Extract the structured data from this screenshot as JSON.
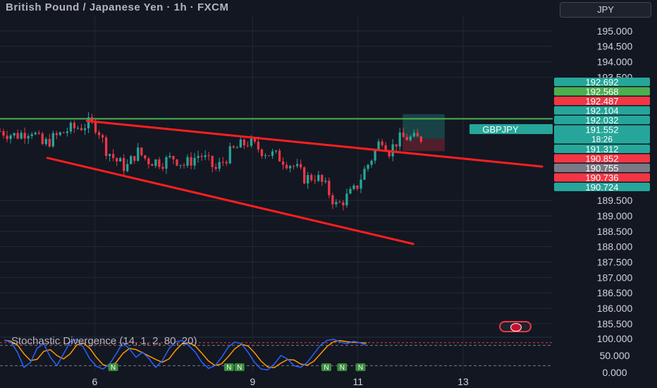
{
  "header": {
    "title": "British Pound / Japanese Yen · 1h · FXCM",
    "currency_button": "JPY"
  },
  "indicator": {
    "label": "Stochastic Divergence (14, 1, 2, 80, 20)"
  },
  "colors": {
    "background": "#131722",
    "bull": "#26a69a",
    "bear": "#f23645",
    "trendline": "#ff1f1f",
    "resistance": "#4caf50",
    "stoch_k": "#2962ff",
    "stoch_d": "#ff9800",
    "grid": "#242833"
  },
  "chart_data": {
    "type": "candlestick",
    "symbol_tag": "GBPJPY",
    "y_ticks": [
      "195.000",
      "194.500",
      "194.000",
      "193.500",
      "189.500",
      "189.000",
      "188.500",
      "188.000",
      "187.500",
      "187.000",
      "186.500",
      "186.000",
      "185.500"
    ],
    "x_ticks": [
      {
        "label": "6",
        "x": 6.0
      },
      {
        "label": "9",
        "x": 9.0
      },
      {
        "label": "11",
        "x": 11.0
      },
      {
        "label": "13",
        "x": 13.0
      }
    ],
    "xlim": [
      4.2,
      14.7
    ],
    "ylim": [
      185.2,
      195.5
    ],
    "grid": true,
    "price_labels": [
      {
        "text": "192.692",
        "price": 192.692,
        "color": "#26a69a"
      },
      {
        "text": "192.568",
        "price": 192.568,
        "color": "#4caf50"
      },
      {
        "text": "192.487",
        "price": 192.487,
        "color": "#f23645"
      },
      {
        "text": "192.104",
        "price": 192.104,
        "color": "#26a69a"
      },
      {
        "text": "192.032",
        "price": 192.032,
        "color": "#26a69a"
      },
      {
        "text": "191.552",
        "price": 191.552,
        "color": "#26a69a",
        "sub": "18:26"
      },
      {
        "text": "191.312",
        "price": 191.312,
        "color": "#26a69a"
      },
      {
        "text": "190.852",
        "price": 190.852,
        "color": "#f23645"
      },
      {
        "text": "190.755",
        "price": 190.755,
        "color": "#787b86"
      },
      {
        "text": "190.736",
        "price": 190.736,
        "color": "#f23645"
      },
      {
        "text": "190.724",
        "price": 190.724,
        "color": "#26a69a"
      }
    ],
    "resistance_level": 192.15,
    "upper_trendline": [
      [
        5.85,
        192.08
      ],
      [
        14.5,
        190.6
      ]
    ],
    "lower_trendline": [
      [
        5.1,
        190.88
      ],
      [
        12.05,
        188.09
      ]
    ],
    "long_position": {
      "x0": 11.85,
      "x1": 12.65,
      "entry": 191.5,
      "target": 192.3,
      "stop": 191.1
    },
    "waypoints": [
      [
        4.2,
        191.75
      ],
      [
        4.5,
        191.6
      ],
      [
        4.8,
        191.8
      ],
      [
        5.0,
        191.3
      ],
      [
        5.2,
        191.5
      ],
      [
        5.5,
        191.8
      ],
      [
        5.75,
        191.9
      ],
      [
        5.9,
        192.0
      ],
      [
        6.05,
        191.9
      ],
      [
        6.2,
        191.2
      ],
      [
        6.4,
        190.8
      ],
      [
        6.6,
        190.55
      ],
      [
        6.8,
        191.1
      ],
      [
        7.0,
        190.8
      ],
      [
        7.3,
        190.75
      ],
      [
        7.5,
        190.9
      ],
      [
        7.7,
        190.65
      ],
      [
        8.0,
        191.0
      ],
      [
        8.3,
        190.5
      ],
      [
        8.6,
        191.1
      ],
      [
        8.9,
        191.4
      ],
      [
        9.2,
        191.1
      ],
      [
        9.5,
        190.9
      ],
      [
        9.8,
        190.6
      ],
      [
        10.0,
        190.2
      ],
      [
        10.2,
        190.3
      ],
      [
        10.4,
        189.9
      ],
      [
        10.6,
        189.3
      ],
      [
        10.75,
        189.55
      ],
      [
        10.95,
        189.85
      ],
      [
        11.1,
        190.4
      ],
      [
        11.3,
        191.0
      ],
      [
        11.45,
        191.55
      ],
      [
        11.6,
        191.1
      ],
      [
        11.75,
        191.45
      ],
      [
        11.9,
        191.55
      ],
      [
        12.1,
        191.48
      ],
      [
        12.2,
        191.52
      ]
    ],
    "n_candles": 120,
    "stochastic": {
      "ylim": [
        0,
        100
      ],
      "y_ticks": [
        "100.000",
        "50.000",
        "0.000"
      ],
      "levels": [
        80,
        20
      ],
      "k": [
        95,
        90,
        60,
        15,
        30,
        72,
        85,
        45,
        20,
        55,
        90,
        98,
        75,
        40,
        18,
        10,
        25,
        55,
        88,
        70,
        45,
        60,
        40,
        15,
        35,
        70,
        90,
        95,
        80,
        60,
        30,
        12,
        20,
        45,
        75,
        90,
        85,
        60,
        30,
        10,
        8,
        25,
        50,
        40,
        20,
        15,
        30,
        55,
        80,
        95,
        98,
        90,
        85,
        92,
        88,
        80
      ],
      "divergence_marks": [
        {
          "label": "N",
          "x": 6.35
        },
        {
          "label": "N",
          "x": 8.55
        },
        {
          "label": "N",
          "x": 8.75
        },
        {
          "label": "N",
          "x": 10.4
        },
        {
          "label": "N",
          "x": 10.7
        },
        {
          "label": "N",
          "x": 11.05
        }
      ]
    }
  }
}
